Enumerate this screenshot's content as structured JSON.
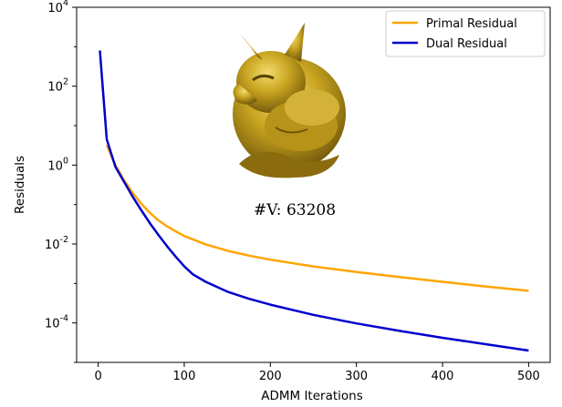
{
  "chart_data": {
    "type": "line",
    "xlabel": "ADMM Iterations",
    "ylabel": "Residuals",
    "xlim": [
      -25,
      525
    ],
    "ylim_exponents": [
      -5,
      4
    ],
    "yscale": "log",
    "x_ticks": [
      0,
      100,
      200,
      300,
      400,
      500
    ],
    "y_ticks": [
      {
        "base": "10",
        "exp": "4",
        "value": 10000
      },
      {
        "base": "10",
        "exp": "2",
        "value": 100
      },
      {
        "base": "10",
        "exp": "0",
        "value": 1
      },
      {
        "base": "10",
        "exp": "-2",
        "value": 0.01
      },
      {
        "base": "10",
        "exp": "-4",
        "value": 0.0001
      }
    ],
    "legend_position": "top-right",
    "annotation": "#V: 63208",
    "image_icon": "gargoyle-model-icon",
    "series": [
      {
        "name": "Primal Residual",
        "color": "#FFA500",
        "points": [
          [
            10,
            3.2
          ],
          [
            20,
            1.0
          ],
          [
            30,
            0.42
          ],
          [
            40,
            0.2
          ],
          [
            50,
            0.105
          ],
          [
            60,
            0.062
          ],
          [
            70,
            0.04
          ],
          [
            80,
            0.028
          ],
          [
            90,
            0.021
          ],
          [
            100,
            0.016
          ],
          [
            125,
            0.0098
          ],
          [
            150,
            0.0068
          ],
          [
            175,
            0.0051
          ],
          [
            200,
            0.004
          ],
          [
            250,
            0.0027
          ],
          [
            300,
            0.00195
          ],
          [
            350,
            0.00145
          ],
          [
            400,
            0.0011
          ],
          [
            450,
            0.00084
          ],
          [
            500,
            0.00065
          ]
        ]
      },
      {
        "name": "Dual Residual",
        "color": "#0000CD",
        "points": [
          [
            2,
            800
          ],
          [
            10,
            4.5
          ],
          [
            20,
            0.9
          ],
          [
            30,
            0.38
          ],
          [
            40,
            0.16
          ],
          [
            50,
            0.072
          ],
          [
            60,
            0.034
          ],
          [
            70,
            0.017
          ],
          [
            80,
            0.0088
          ],
          [
            90,
            0.0048
          ],
          [
            100,
            0.0027
          ],
          [
            110,
            0.0017
          ],
          [
            125,
            0.0011
          ],
          [
            150,
            0.00062
          ],
          [
            175,
            0.00041
          ],
          [
            200,
            0.00029
          ],
          [
            250,
            0.00016
          ],
          [
            300,
            9.7e-05
          ],
          [
            350,
            6.3e-05
          ],
          [
            400,
            4.2e-05
          ],
          [
            450,
            2.9e-05
          ],
          [
            500,
            2e-05
          ]
        ]
      }
    ]
  }
}
